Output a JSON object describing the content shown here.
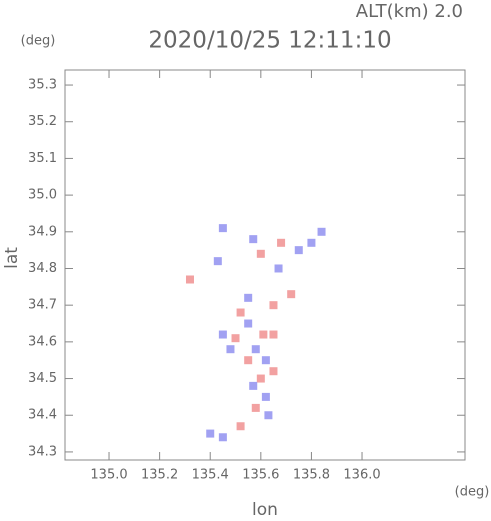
{
  "chart_data": {
    "type": "scatter",
    "title": "2020/10/25 12:11:10",
    "subtitle": "ALT(km) 2.0",
    "y_unit": "(deg)",
    "x_unit": "(deg)",
    "x_label": "lon",
    "y_label": "lat",
    "xlim": [
      134.826,
      136.407
    ],
    "ylim": [
      34.278,
      35.341
    ],
    "xticks": [
      {
        "value": 135,
        "label": "135.0"
      },
      135.2,
      135.4,
      135.6,
      135.8,
      {
        "value": 136,
        "label": "136.0"
      }
    ],
    "yticks": [
      34.3,
      34.4,
      34.5,
      34.6,
      34.7,
      34.8,
      34.9,
      {
        "value": 35,
        "label": "35.0"
      },
      35.1,
      35.2,
      35.3
    ],
    "x": [
      135.61,
      135.55,
      135.52,
      135.58,
      135.62,
      135.6,
      135.62,
      135.58,
      135.63,
      135.5,
      135.45,
      135.4,
      135.45,
      135.52,
      135.65,
      135.67,
      135.72,
      135.75,
      135.8,
      135.84,
      135.68,
      135.57,
      135.45,
      135.32,
      135.43,
      135.6,
      135.55,
      135.65,
      135.55,
      135.48,
      135.57,
      135.65
    ],
    "y": [
      34.62,
      34.65,
      34.68,
      34.58,
      34.55,
      34.5,
      34.45,
      34.42,
      34.4,
      34.61,
      34.62,
      34.35,
      34.34,
      34.37,
      34.7,
      34.8,
      34.73,
      34.85,
      34.87,
      34.9,
      34.87,
      34.88,
      34.91,
      34.77,
      34.82,
      34.84,
      34.72,
      34.62,
      34.55,
      34.58,
      34.48,
      34.52
    ],
    "colors": [
      "#f09090",
      "#9090f0",
      "#f09090",
      "#9090f0",
      "#9090f0",
      "#f09090",
      "#9090f0",
      "#f09090",
      "#9090f0",
      "#f09090",
      "#9090f0",
      "#9090f0",
      "#9090f0",
      "#f09090",
      "#f09090",
      "#9090f0",
      "#f09090",
      "#9090f0",
      "#9090f0",
      "#9090f0",
      "#f09090",
      "#9090f0",
      "#9090f0",
      "#f09090",
      "#9090f0",
      "#f09090",
      "#9090f0",
      "#f09090",
      "#f09090",
      "#9090f0",
      "#9090f0",
      "#f09090"
    ]
  }
}
